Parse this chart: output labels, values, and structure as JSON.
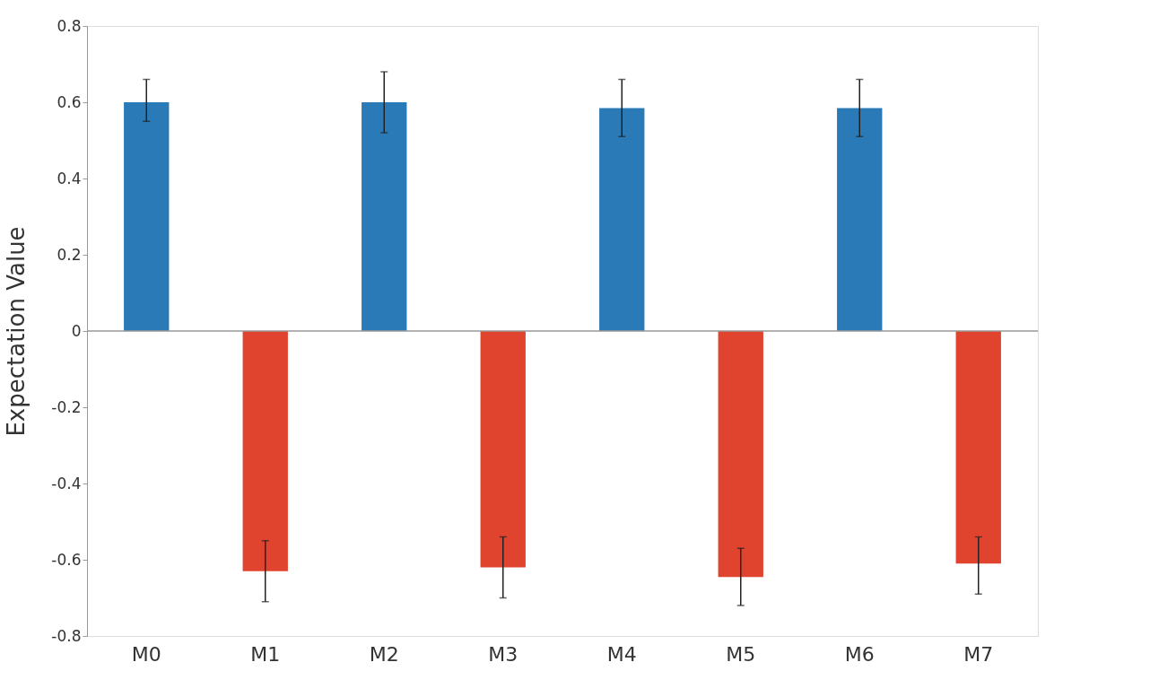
{
  "chart_data": {
    "type": "bar",
    "ylabel": "Expectation Value",
    "categories": [
      "M0",
      "M1",
      "M2",
      "M3",
      "M4",
      "M5",
      "M6",
      "M7"
    ],
    "values": [
      0.6,
      -0.63,
      0.6,
      -0.62,
      0.585,
      -0.645,
      0.585,
      -0.61
    ],
    "colors": [
      "#2a7ab8",
      "#e0442f",
      "#2a7ab8",
      "#e0442f",
      "#2a7ab8",
      "#e0442f",
      "#2a7ab8",
      "#e0442f"
    ],
    "errors": [
      [
        0.55,
        0.66
      ],
      [
        -0.71,
        -0.55
      ],
      [
        0.52,
        0.68
      ],
      [
        -0.7,
        -0.54
      ],
      [
        0.51,
        0.66
      ],
      [
        -0.72,
        -0.57
      ],
      [
        0.51,
        0.66
      ],
      [
        -0.69,
        -0.54
      ]
    ],
    "ylim": [
      -0.8,
      0.8
    ],
    "yticks": [
      -0.8,
      -0.6,
      -0.4,
      -0.2,
      0,
      0.2,
      0.4,
      0.6,
      0.8
    ],
    "ref_lines": [
      {
        "axis": "y",
        "value": 0,
        "color": "#999999"
      }
    ],
    "grid": false
  }
}
